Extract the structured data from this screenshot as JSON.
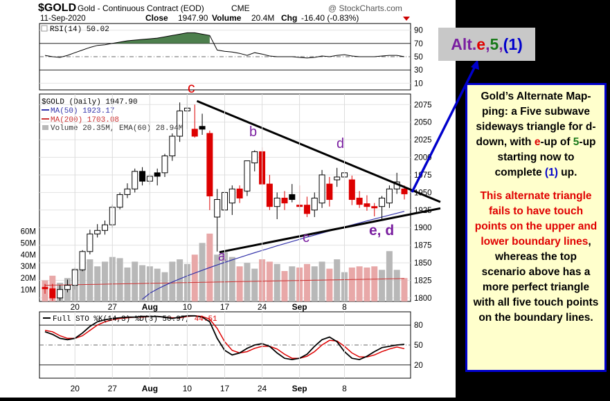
{
  "header": {
    "symbol": "$GOLD",
    "name": "Gold - Continuous Contract (EOD)",
    "exchange": "CME",
    "date": "11-Sep-2020",
    "close_label": "Close",
    "close_value": "1947.90",
    "volume_label": "Volume",
    "volume_value": "20.4M",
    "chg_label": "Chg",
    "chg_value": "-16.40 (-0.83%)",
    "watermark": "@ StockCharts.com"
  },
  "rsi_panel": {
    "label": "RSI(14) 50.02",
    "ticks": [
      "90",
      "70",
      "50",
      "30",
      "10"
    ]
  },
  "price_panel": {
    "label": "$GOLD (Daily) 1947.90",
    "ma50_label": "MA(50) 1923.17",
    "ma200_label": "MA(200) 1703.08",
    "volume_label": "Volume 20.35M, EMA(60) 28.94M",
    "price_ticks": [
      "2075",
      "2050",
      "2025",
      "2000",
      "1975",
      "1950",
      "1925",
      "1900",
      "1875",
      "1850",
      "1825",
      "1800"
    ],
    "volume_ticks": [
      "60M",
      "50M",
      "40M",
      "30M",
      "20M",
      "10M"
    ],
    "wave_labels": {
      "c_top": "c",
      "b": "b",
      "d": "d",
      "a": "a",
      "c_bottom": "c",
      "ed": "e, d"
    },
    "x_ticks": [
      "20",
      "27",
      "Aug",
      "10",
      "17",
      "24",
      "Sep",
      "8"
    ]
  },
  "sto_panel": {
    "label_black": "Full STO %K(14,3) %D(3) 50.97,",
    "label_red": "44.51",
    "ticks": [
      "80",
      "50",
      "20"
    ],
    "x_ticks": [
      "20",
      "27",
      "Aug",
      "10",
      "17",
      "24",
      "Sep",
      "8"
    ]
  },
  "colors": {
    "candle_up": "#ffffff",
    "candle_down": "#dd0000",
    "candle_black": "#000000",
    "ma50": "#3333aa",
    "ma200": "#cc3333",
    "rsi_fill": "#4d7f4d",
    "vol_gray": "#b8b8b8",
    "vol_red": "#e8a8a8",
    "note_border": "#0000cc",
    "arrow": "#0000cc"
  },
  "alt_box": {
    "prefix": "Alt. ",
    "e": "e",
    "sep1": ", ",
    "five": "5",
    "sep2": ", ",
    "one": "(1)"
  },
  "note": {
    "p1": [
      {
        "t": "Gold’s Alternate Map-ping: a Five subwave sideways triangle for d-down, with ",
        "c": ""
      },
      {
        "t": "e",
        "c": "red"
      },
      {
        "t": "-up of ",
        "c": ""
      },
      {
        "t": "5",
        "c": "green"
      },
      {
        "t": "-up starting now to complete ",
        "c": ""
      },
      {
        "t": "(1)",
        "c": "blue"
      },
      {
        "t": " up.",
        "c": ""
      }
    ],
    "p2": "This alternate triangle fails to have touch points on the upper and lower boundary lines",
    "p3": ", whereas the top scenario above has a more perfect triangle with all five touch points on the boundary lines."
  },
  "chart_data": {
    "type": "candlestick",
    "title": "$GOLD Gold - Continuous Contract (EOD) CME",
    "x_tick_labels": [
      "20",
      "27",
      "Aug",
      "10",
      "17",
      "24",
      "Sep",
      "8"
    ],
    "price_ylim": [
      1795,
      2090
    ],
    "candles": [
      {
        "o": 1815,
        "h": 1820,
        "l": 1806,
        "c": 1813,
        "d": "down"
      },
      {
        "o": 1813,
        "h": 1820,
        "l": 1796,
        "c": 1800,
        "d": "down"
      },
      {
        "o": 1800,
        "h": 1818,
        "l": 1796,
        "c": 1812,
        "d": "up"
      },
      {
        "o": 1812,
        "h": 1826,
        "l": 1808,
        "c": 1818,
        "d": "up"
      },
      {
        "o": 1818,
        "h": 1843,
        "l": 1812,
        "c": 1840,
        "d": "up"
      },
      {
        "o": 1840,
        "h": 1868,
        "l": 1838,
        "c": 1866,
        "d": "up"
      },
      {
        "o": 1866,
        "h": 1897,
        "l": 1862,
        "c": 1891,
        "d": "up"
      },
      {
        "o": 1891,
        "h": 1905,
        "l": 1886,
        "c": 1896,
        "d": "up"
      },
      {
        "o": 1896,
        "h": 1910,
        "l": 1890,
        "c": 1904,
        "d": "up"
      },
      {
        "o": 1904,
        "h": 1933,
        "l": 1900,
        "c": 1929,
        "d": "up"
      },
      {
        "o": 1929,
        "h": 1950,
        "l": 1926,
        "c": 1947,
        "d": "up"
      },
      {
        "o": 1947,
        "h": 1963,
        "l": 1942,
        "c": 1955,
        "d": "up"
      },
      {
        "o": 1955,
        "h": 1984,
        "l": 1950,
        "c": 1980,
        "d": "up"
      },
      {
        "o": 1980,
        "h": 1986,
        "l": 1960,
        "c": 1966,
        "d": "black"
      },
      {
        "o": 1966,
        "h": 1976,
        "l": 1961,
        "c": 1973,
        "d": "up"
      },
      {
        "o": 1973,
        "h": 1984,
        "l": 1960,
        "c": 1978,
        "d": "black"
      },
      {
        "o": 1978,
        "h": 2005,
        "l": 1972,
        "c": 2002,
        "d": "up"
      },
      {
        "o": 2002,
        "h": 2034,
        "l": 1995,
        "c": 2030,
        "d": "up"
      },
      {
        "o": 2030,
        "h": 2078,
        "l": 2022,
        "c": 2066,
        "d": "up"
      },
      {
        "o": 2066,
        "h": 2088,
        "l": 2040,
        "c": 2070,
        "d": "up"
      },
      {
        "o": 2040,
        "h": 2075,
        "l": 2028,
        "c": 2030,
        "d": "down"
      },
      {
        "o": 2044,
        "h": 2062,
        "l": 2032,
        "c": 2040,
        "d": "black"
      },
      {
        "o": 2034,
        "h": 2038,
        "l": 1925,
        "c": 1945,
        "d": "down"
      },
      {
        "o": 1915,
        "h": 1955,
        "l": 1866,
        "c": 1940,
        "d": "up"
      },
      {
        "o": 1925,
        "h": 1950,
        "l": 1915,
        "c": 1950,
        "d": "up"
      },
      {
        "o": 1935,
        "h": 1960,
        "l": 1918,
        "c": 1955,
        "d": "up"
      },
      {
        "o": 1955,
        "h": 1960,
        "l": 1935,
        "c": 1942,
        "d": "down"
      },
      {
        "o": 1952,
        "h": 1995,
        "l": 1945,
        "c": 1995,
        "d": "up"
      },
      {
        "o": 1992,
        "h": 2010,
        "l": 1980,
        "c": 2008,
        "d": "up"
      },
      {
        "o": 2008,
        "h": 2014,
        "l": 1960,
        "c": 1962,
        "d": "down"
      },
      {
        "o": 1962,
        "h": 1975,
        "l": 1925,
        "c": 1930,
        "d": "down"
      },
      {
        "o": 1930,
        "h": 1950,
        "l": 1912,
        "c": 1942,
        "d": "up"
      },
      {
        "o": 1942,
        "h": 1952,
        "l": 1925,
        "c": 1935,
        "d": "down"
      },
      {
        "o": 1947,
        "h": 1962,
        "l": 1936,
        "c": 1940,
        "d": "black"
      },
      {
        "o": 1932,
        "h": 1960,
        "l": 1924,
        "c": 1930,
        "d": "down"
      },
      {
        "o": 1932,
        "h": 1944,
        "l": 1915,
        "c": 1920,
        "d": "down"
      },
      {
        "o": 1925,
        "h": 1950,
        "l": 1915,
        "c": 1942,
        "d": "up"
      },
      {
        "o": 1935,
        "h": 1982,
        "l": 1928,
        "c": 1975,
        "d": "up"
      },
      {
        "o": 1962,
        "h": 1972,
        "l": 1930,
        "c": 1940,
        "d": "down"
      },
      {
        "o": 1968,
        "h": 1985,
        "l": 1958,
        "c": 1972,
        "d": "up"
      },
      {
        "o": 1972,
        "h": 1998,
        "l": 1965,
        "c": 1978,
        "d": "up"
      },
      {
        "o": 1968,
        "h": 1974,
        "l": 1932,
        "c": 1940,
        "d": "down"
      },
      {
        "o": 1942,
        "h": 1952,
        "l": 1928,
        "c": 1933,
        "d": "down"
      },
      {
        "o": 1934,
        "h": 1946,
        "l": 1924,
        "c": 1930,
        "d": "down"
      },
      {
        "o": 1930,
        "h": 1935,
        "l": 1916,
        "c": 1928,
        "d": "down"
      },
      {
        "o": 1930,
        "h": 1945,
        "l": 1912,
        "c": 1942,
        "d": "up"
      },
      {
        "o": 1935,
        "h": 1960,
        "l": 1928,
        "c": 1955,
        "d": "up"
      },
      {
        "o": 1955,
        "h": 1978,
        "l": 1948,
        "c": 1965,
        "d": "up"
      },
      {
        "o": 1955,
        "h": 1960,
        "l": 1940,
        "c": 1948,
        "d": "down"
      }
    ],
    "volume_millions": [
      18,
      22,
      16,
      20,
      28,
      33,
      36,
      30,
      34,
      38,
      37,
      29,
      34,
      31,
      30,
      28,
      25,
      34,
      36,
      32,
      40,
      50,
      58,
      40,
      42,
      38,
      30,
      33,
      28,
      36,
      34,
      32,
      26,
      30,
      29,
      32,
      30,
      34,
      28,
      36,
      25,
      29,
      30,
      29,
      30,
      27,
      43,
      27,
      20
    ],
    "volume_ylim": [
      0,
      65
    ],
    "ma50_start_end": [
      [
        1860,
        1836
      ],
      [
        1923.17,
        1925
      ]
    ],
    "rsi_ylim": [
      0,
      100
    ],
    "sto_ylim": [
      0,
      100
    ],
    "trendlines": [
      {
        "from_index": 19,
        "from_price": 2080,
        "to_index": 48,
        "to_price": 1952
      },
      {
        "from_index": 22,
        "from_price": 1865,
        "to_index": 48,
        "to_price": 1920
      }
    ]
  }
}
